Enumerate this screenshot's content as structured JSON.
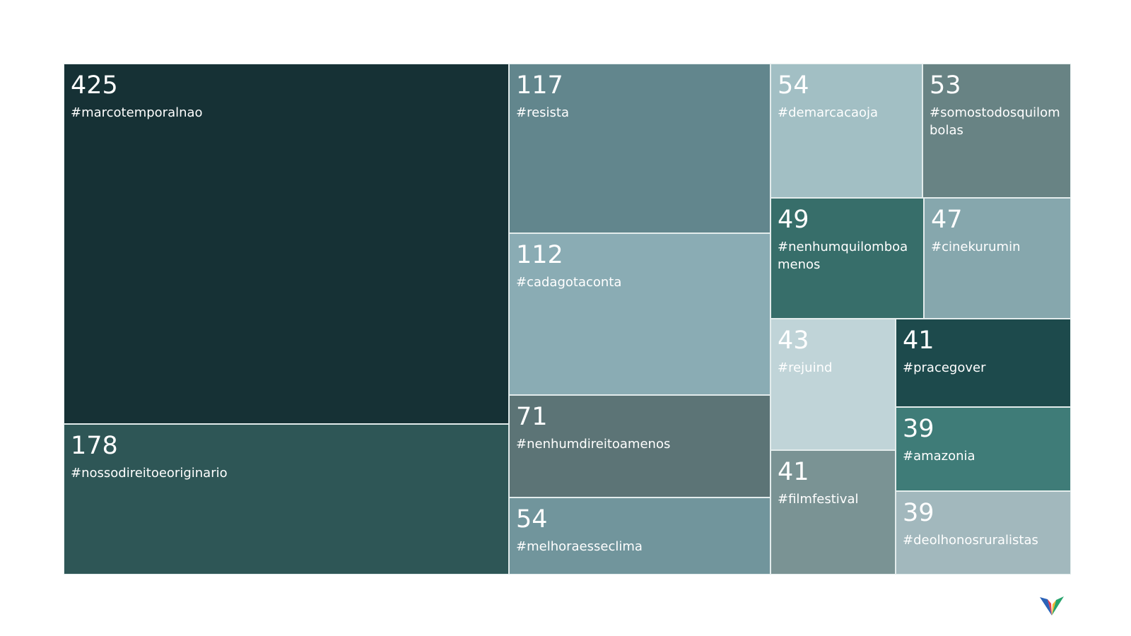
{
  "chart_data": {
    "type": "treemap",
    "items": [
      {
        "label": "#marcotemporalnao",
        "value": 425,
        "color": "#163135"
      },
      {
        "label": "#nossodireitoeoriginario",
        "value": 178,
        "color": "#2e5656"
      },
      {
        "label": "#resista",
        "value": 117,
        "color": "#62868d"
      },
      {
        "label": "#cadagotaconta",
        "value": 112,
        "color": "#8aacb4"
      },
      {
        "label": "#nenhumdireitoamenos",
        "value": 71,
        "color": "#5c7476"
      },
      {
        "label": "#melhoraesseclima",
        "value": 54,
        "color": "#71959c"
      },
      {
        "label": "#demarcacaoja",
        "value": 54,
        "color": "#a2bfc4"
      },
      {
        "label": "#somostodosquilombolas",
        "value": 53,
        "color": "#688384"
      },
      {
        "label": "#nenhumquilomboamenos",
        "value": 49,
        "color": "#376e6a"
      },
      {
        "label": "#cinekurumin",
        "value": 47,
        "color": "#86a7ad"
      },
      {
        "label": "#rejuind",
        "value": 43,
        "color": "#c0d4d8"
      },
      {
        "label": "#filmfestival",
        "value": 41,
        "color": "#7a9394"
      },
      {
        "label": "#pracegover",
        "value": 41,
        "color": "#1d4a4c"
      },
      {
        "label": "#amazonia",
        "value": 39,
        "color": "#3f7c78"
      },
      {
        "label": "#deolhonosruralistas",
        "value": 39,
        "color": "#a2b8bd"
      }
    ]
  },
  "logo": {
    "icon": "v-logo-icon"
  }
}
